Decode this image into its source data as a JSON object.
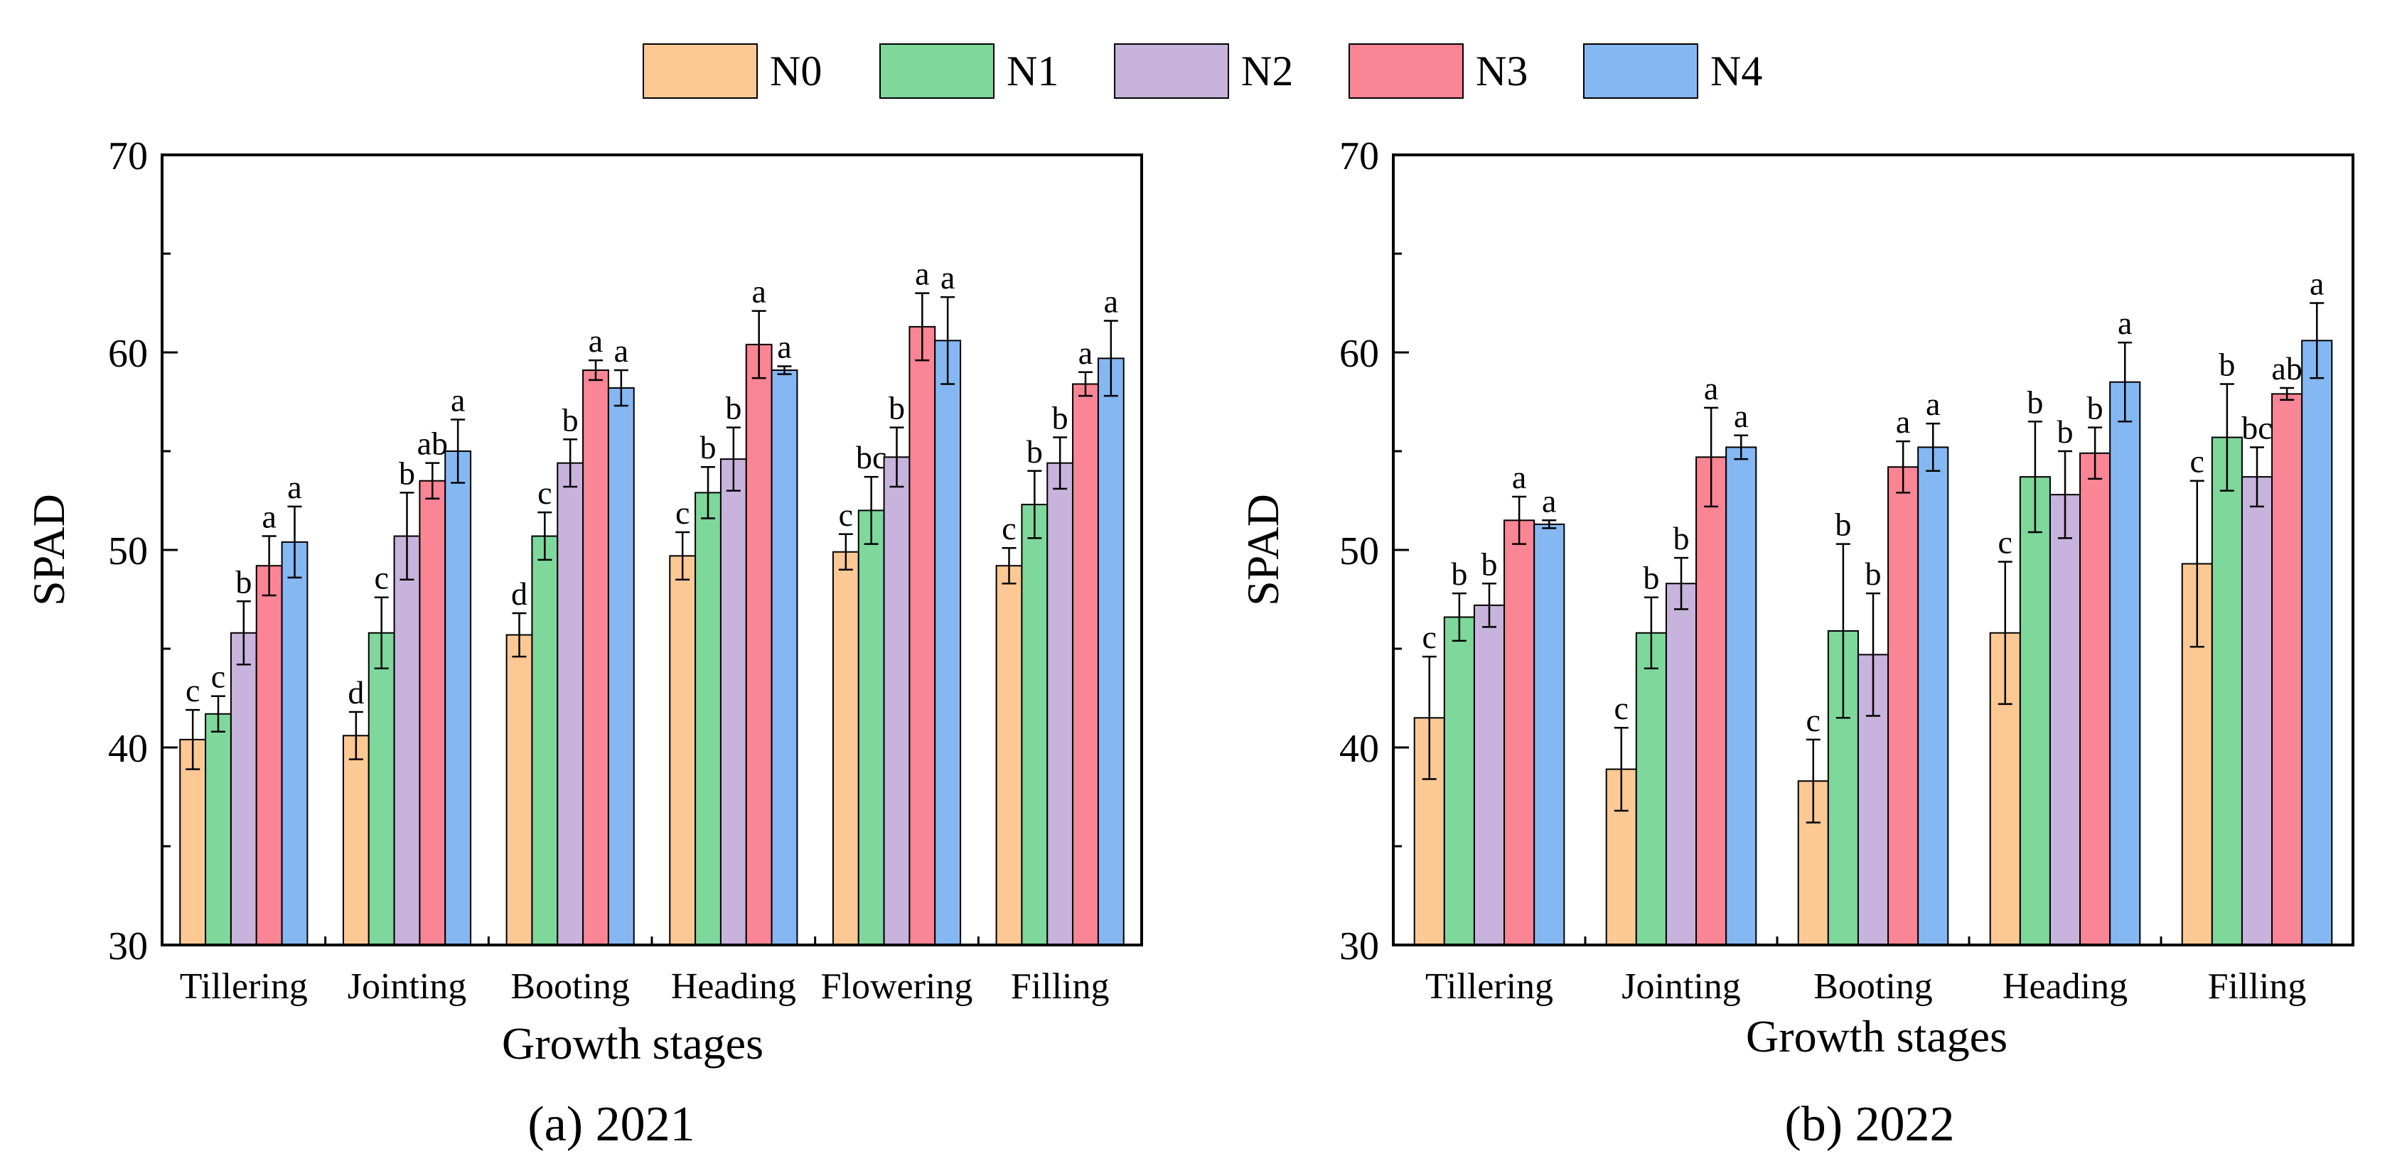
{
  "legend": [
    {
      "name": "N0",
      "color": "#FCC894"
    },
    {
      "name": "N1",
      "color": "#7ED79B"
    },
    {
      "name": "N2",
      "color": "#C8B3DC"
    },
    {
      "name": "N3",
      "color": "#F98595"
    },
    {
      "name": "N4",
      "color": "#85B8F3"
    }
  ],
  "chart_data": [
    {
      "type": "bar",
      "caption": "(a) 2021",
      "xlabel": "Growth stages",
      "ylabel": "SPAD",
      "ylim": [
        30,
        70
      ],
      "yticks": [
        30,
        40,
        50,
        60,
        70
      ],
      "categories": [
        "Tillering",
        "Jointing",
        "Booting",
        "Heading",
        "Flowering",
        "Filling"
      ],
      "series": [
        {
          "name": "N0",
          "color": "#FCC894",
          "values": [
            40.4,
            40.6,
            45.7,
            49.7,
            49.9,
            49.2
          ],
          "errors": [
            1.5,
            1.2,
            1.1,
            1.2,
            0.9,
            0.9
          ],
          "letters": [
            "c",
            "d",
            "d",
            "c",
            "c",
            "c"
          ]
        },
        {
          "name": "N1",
          "color": "#7ED79B",
          "values": [
            41.7,
            45.8,
            50.7,
            52.9,
            52.0,
            52.3
          ],
          "errors": [
            0.9,
            1.8,
            1.2,
            1.3,
            1.7,
            1.7
          ],
          "letters": [
            "c",
            "c",
            "c",
            "b",
            "bc",
            "b"
          ]
        },
        {
          "name": "N2",
          "color": "#C8B3DC",
          "values": [
            45.8,
            50.7,
            54.4,
            54.6,
            54.7,
            54.4
          ],
          "errors": [
            1.6,
            2.2,
            1.2,
            1.6,
            1.5,
            1.3
          ],
          "letters": [
            "b",
            "b",
            "b",
            "b",
            "b",
            "b"
          ]
        },
        {
          "name": "N3",
          "color": "#F98595",
          "values": [
            49.2,
            53.5,
            59.1,
            60.4,
            61.3,
            58.4
          ],
          "errors": [
            1.5,
            0.9,
            0.5,
            1.7,
            1.7,
            0.6
          ],
          "letters": [
            "a",
            "ab",
            "a",
            "a",
            "a",
            "a"
          ]
        },
        {
          "name": "N4",
          "color": "#85B8F3",
          "values": [
            50.4,
            55.0,
            58.2,
            59.1,
            60.6,
            59.7
          ],
          "errors": [
            1.8,
            1.6,
            0.9,
            0.2,
            2.2,
            1.9
          ],
          "letters": [
            "a",
            "a",
            "a",
            "a",
            "a",
            "a"
          ]
        }
      ]
    },
    {
      "type": "bar",
      "caption": "(b) 2022",
      "xlabel": "Growth stages",
      "ylabel": "SPAD",
      "ylim": [
        30,
        70
      ],
      "yticks": [
        30,
        40,
        50,
        60,
        70
      ],
      "categories": [
        "Tillering",
        "Jointing",
        "Booting",
        "Heading",
        "Filling"
      ],
      "series": [
        {
          "name": "N0",
          "color": "#FCC894",
          "values": [
            41.5,
            38.9,
            38.3,
            45.8,
            49.3
          ],
          "errors": [
            3.1,
            2.1,
            2.1,
            3.6,
            4.2
          ],
          "letters": [
            "c",
            "c",
            "c",
            "c",
            "c"
          ]
        },
        {
          "name": "N1",
          "color": "#7ED79B",
          "values": [
            46.6,
            45.8,
            45.9,
            53.7,
            55.7
          ],
          "errors": [
            1.2,
            1.8,
            4.4,
            2.8,
            2.7
          ],
          "letters": [
            "b",
            "b",
            "b",
            "b",
            "b"
          ]
        },
        {
          "name": "N2",
          "color": "#C8B3DC",
          "values": [
            47.2,
            48.3,
            44.7,
            52.8,
            53.7
          ],
          "errors": [
            1.1,
            1.3,
            3.1,
            2.2,
            1.5
          ],
          "letters": [
            "b",
            "b",
            "b",
            "b",
            "bc"
          ]
        },
        {
          "name": "N3",
          "color": "#F98595",
          "values": [
            51.5,
            54.7,
            54.2,
            54.9,
            57.9
          ],
          "errors": [
            1.2,
            2.5,
            1.3,
            1.3,
            0.3
          ],
          "letters": [
            "a",
            "a",
            "a",
            "b",
            "ab"
          ]
        },
        {
          "name": "N4",
          "color": "#85B8F3",
          "values": [
            51.3,
            55.2,
            55.2,
            58.5,
            60.6
          ],
          "errors": [
            0.2,
            0.6,
            1.2,
            2.0,
            1.9
          ],
          "letters": [
            "a",
            "a",
            "a",
            "a",
            "a"
          ]
        }
      ]
    }
  ]
}
